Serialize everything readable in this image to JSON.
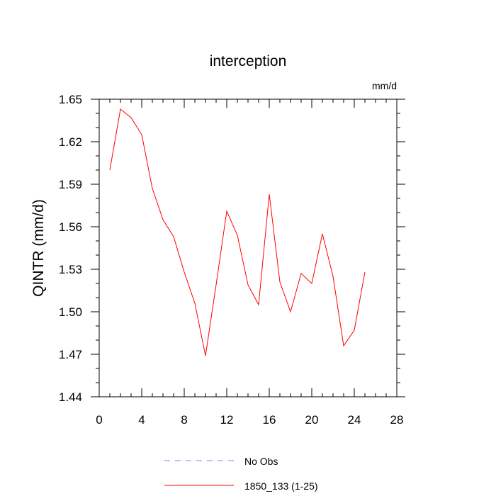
{
  "chart_data": {
    "type": "line",
    "title": "interception",
    "units_label": "mm/d",
    "ylabel": "QINTR  (mm/d)",
    "xlabel": "",
    "xlim": [
      0,
      28
    ],
    "ylim": [
      1.44,
      1.65
    ],
    "x_ticks": [
      0,
      4,
      8,
      12,
      16,
      20,
      24,
      28
    ],
    "x_tick_labels": [
      "0",
      "4",
      "8",
      "12",
      "16",
      "20",
      "24",
      "28"
    ],
    "y_ticks": [
      1.44,
      1.47,
      1.5,
      1.53,
      1.56,
      1.59,
      1.62,
      1.65
    ],
    "y_tick_labels": [
      "1.44",
      "1.47",
      "1.50",
      "1.53",
      "1.56",
      "1.59",
      "1.62",
      "1.65"
    ],
    "grid": false,
    "legend_position": "bottom",
    "series": [
      {
        "name": "No Obs",
        "color": "#7b7bff",
        "dash": "dashed",
        "x": [],
        "values": []
      },
      {
        "name": "1850_133 (1-25)",
        "color": "#ff0000",
        "dash": "solid",
        "x": [
          1,
          2,
          3,
          4,
          5,
          6,
          7,
          8,
          9,
          10,
          11,
          12,
          13,
          14,
          15,
          16,
          17,
          18,
          19,
          20,
          21,
          22,
          23,
          24,
          25
        ],
        "values": [
          1.6,
          1.643,
          1.637,
          1.625,
          1.587,
          1.565,
          1.553,
          1.528,
          1.506,
          1.469,
          1.519,
          1.571,
          1.554,
          1.519,
          1.505,
          1.583,
          1.521,
          1.5,
          1.527,
          1.52,
          1.555,
          1.525,
          1.476,
          1.487,
          1.528
        ]
      }
    ]
  }
}
